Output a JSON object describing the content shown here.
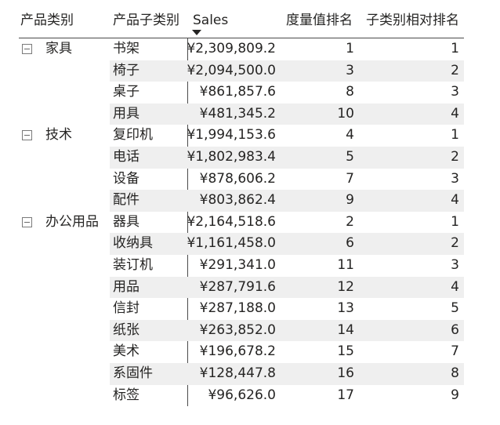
{
  "headers": {
    "category": "产品类别",
    "subcategory": "产品子类别",
    "sales": "Sales",
    "measure_rank": "度量值排名",
    "sub_relative_rank": "子类别相对排名"
  },
  "rows": [
    {
      "category": "家具",
      "sub": "书架",
      "sales": "¥2,309,809.2",
      "rank": "1",
      "subrank": "1"
    },
    {
      "category": "",
      "sub": "椅子",
      "sales": "¥2,094,500.0",
      "rank": "3",
      "subrank": "2"
    },
    {
      "category": "",
      "sub": "桌子",
      "sales": "¥861,857.6",
      "rank": "8",
      "subrank": "3"
    },
    {
      "category": "",
      "sub": "用具",
      "sales": "¥481,345.2",
      "rank": "10",
      "subrank": "4"
    },
    {
      "category": "技术",
      "sub": "复印机",
      "sales": "¥1,994,153.6",
      "rank": "4",
      "subrank": "1"
    },
    {
      "category": "",
      "sub": "电话",
      "sales": "¥1,802,983.4",
      "rank": "5",
      "subrank": "2"
    },
    {
      "category": "",
      "sub": "设备",
      "sales": "¥878,606.2",
      "rank": "7",
      "subrank": "3"
    },
    {
      "category": "",
      "sub": "配件",
      "sales": "¥803,862.4",
      "rank": "9",
      "subrank": "4"
    },
    {
      "category": "办公用品",
      "sub": "器具",
      "sales": "¥2,164,518.6",
      "rank": "2",
      "subrank": "1"
    },
    {
      "category": "",
      "sub": "收纳具",
      "sales": "¥1,161,458.0",
      "rank": "6",
      "subrank": "2"
    },
    {
      "category": "",
      "sub": "装订机",
      "sales": "¥291,341.0",
      "rank": "11",
      "subrank": "3"
    },
    {
      "category": "",
      "sub": "用品",
      "sales": "¥287,791.6",
      "rank": "12",
      "subrank": "4"
    },
    {
      "category": "",
      "sub": "信封",
      "sales": "¥287,188.0",
      "rank": "13",
      "subrank": "5"
    },
    {
      "category": "",
      "sub": "纸张",
      "sales": "¥263,852.0",
      "rank": "14",
      "subrank": "6"
    },
    {
      "category": "",
      "sub": "美术",
      "sales": "¥196,678.2",
      "rank": "15",
      "subrank": "7"
    },
    {
      "category": "",
      "sub": "系固件",
      "sales": "¥128,447.8",
      "rank": "16",
      "subrank": "8"
    },
    {
      "category": "",
      "sub": "标签",
      "sales": "¥96,626.0",
      "rank": "17",
      "subrank": "9"
    }
  ],
  "icons": {
    "collapse": "collapse-minus-icon",
    "sort": "sort-descending-icon"
  },
  "colors": {
    "text": "#252423",
    "row_shade": "#efefef",
    "gridline": "#4a4a4a"
  }
}
